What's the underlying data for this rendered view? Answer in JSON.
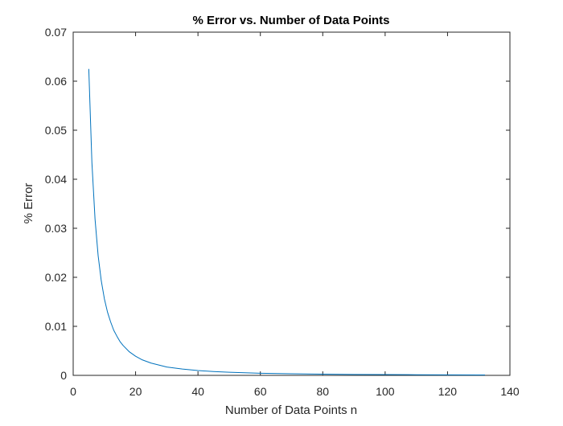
{
  "chart_data": {
    "type": "line",
    "title": "% Error vs. Number of Data Points",
    "xlabel": "Number of Data Points n",
    "ylabel": "% Error",
    "xlim": [
      0,
      140
    ],
    "ylim": [
      0,
      0.07
    ],
    "x_ticks": [
      "0",
      "20",
      "40",
      "60",
      "80",
      "100",
      "120",
      "140"
    ],
    "y_ticks": [
      "0",
      "0.01",
      "0.02",
      "0.03",
      "0.04",
      "0.05",
      "0.06",
      "0.07"
    ],
    "grid": false,
    "legend": "none",
    "colors": {
      "series": "#0072BD",
      "axes": "#262626",
      "background": "#ffffff"
    },
    "series": [
      {
        "x": [
          5,
          6,
          7,
          8,
          9,
          10,
          11,
          12,
          13,
          14,
          15,
          16,
          18,
          20,
          22,
          25,
          30,
          35,
          40,
          45,
          50,
          60,
          70,
          80,
          90,
          100,
          110,
          120,
          130,
          132
        ],
        "values": [
          0.0625,
          0.0434,
          0.0319,
          0.0244,
          0.0193,
          0.0156,
          0.0129,
          0.0109,
          0.0092,
          0.008,
          0.0069,
          0.0061,
          0.0048,
          0.0039,
          0.0032,
          0.0025,
          0.0017,
          0.0013,
          0.00098,
          0.00077,
          0.00063,
          0.00043,
          0.00032,
          0.00024,
          0.00019,
          0.00016,
          0.00013,
          0.00011,
          9e-05,
          9e-05
        ]
      }
    ]
  }
}
